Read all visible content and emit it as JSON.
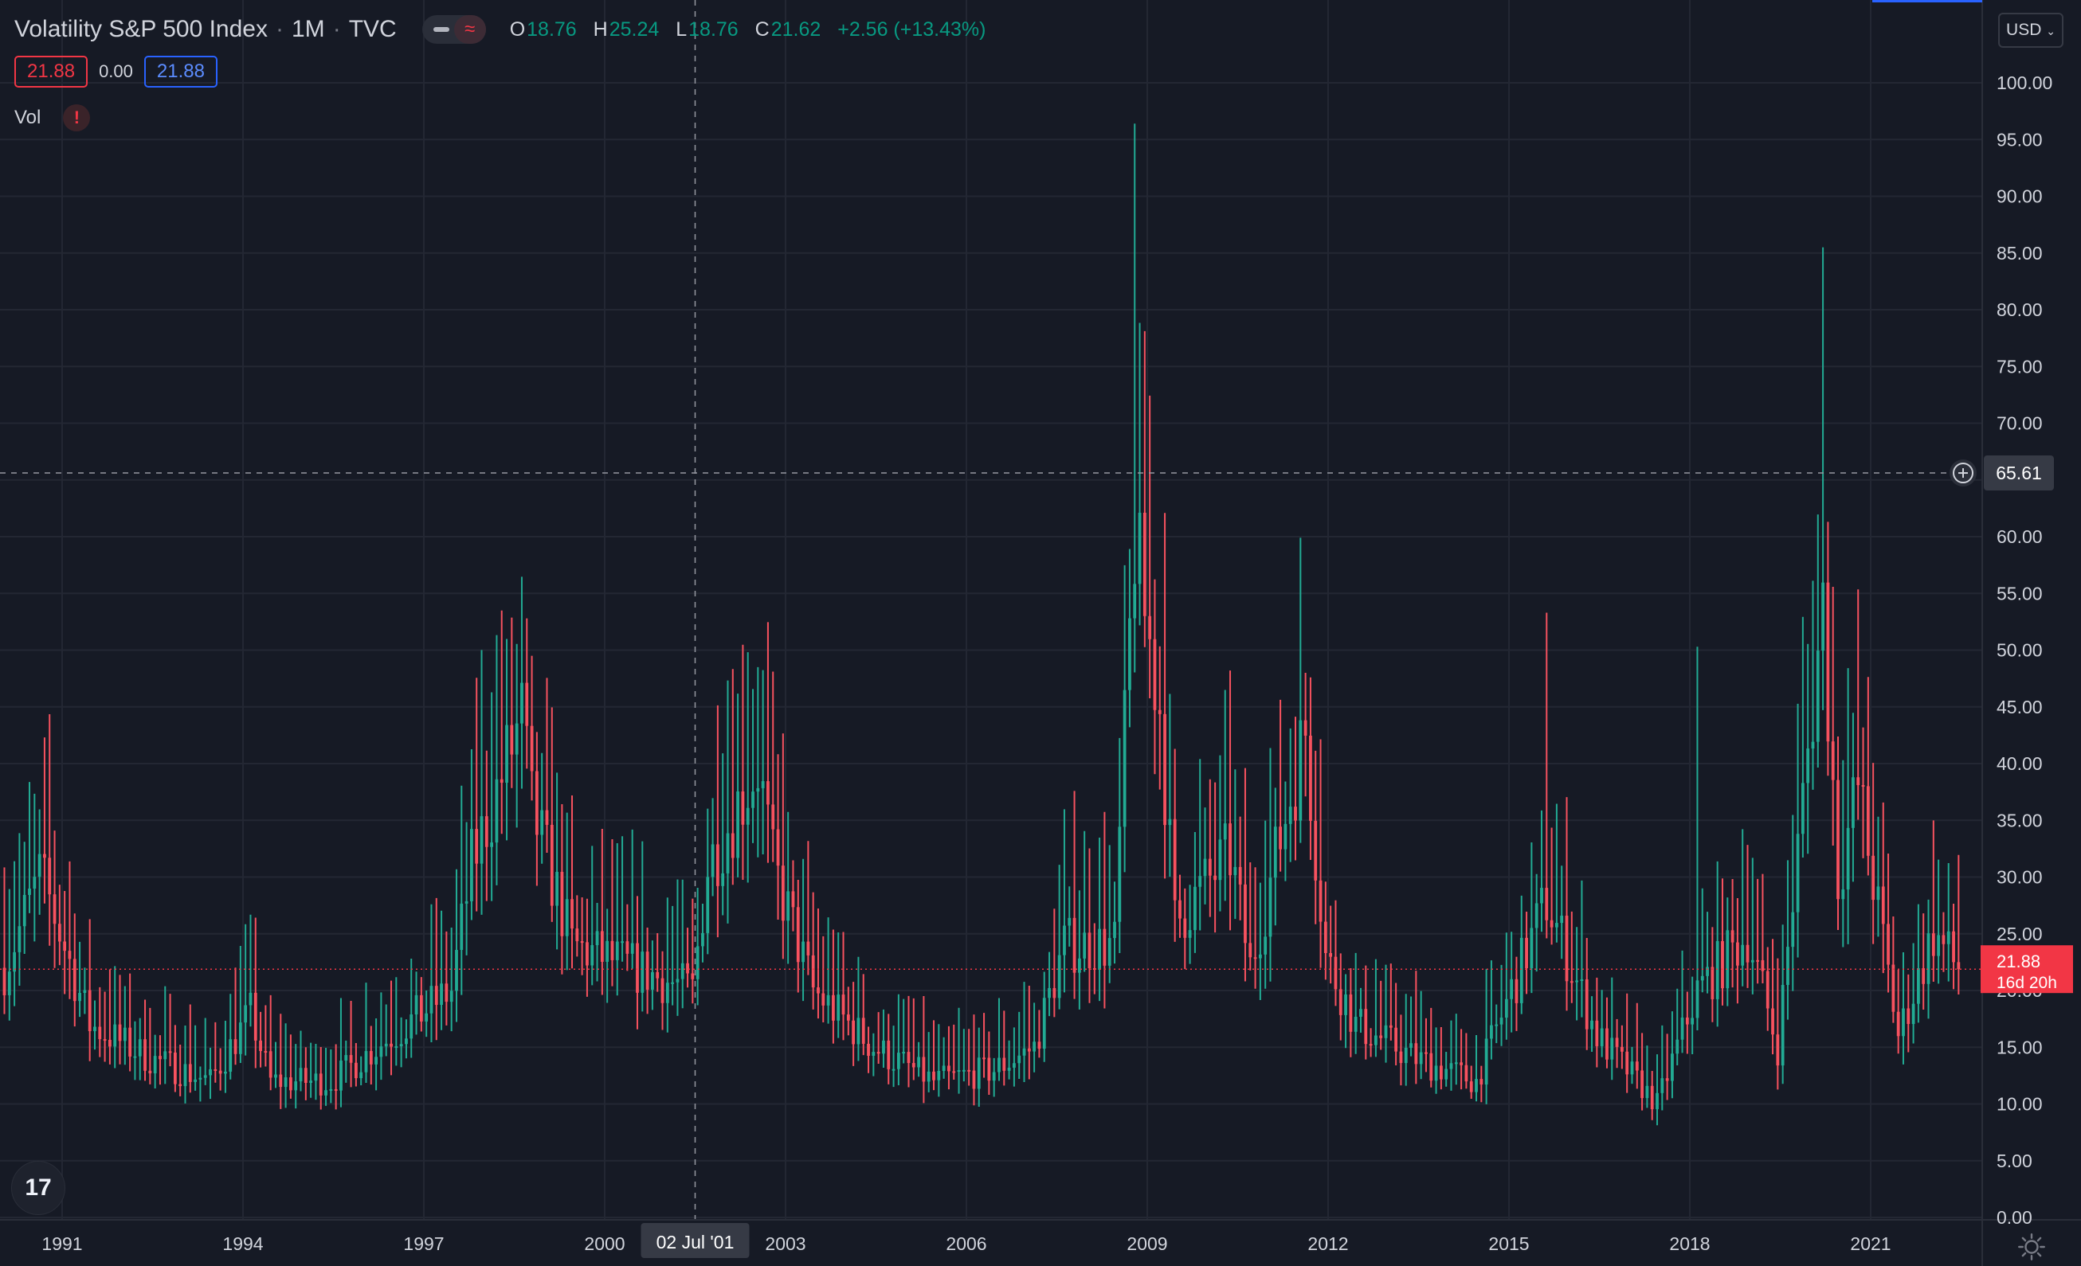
{
  "header": {
    "symbol_name": "Volatility S&P 500 Index",
    "interval": "1M",
    "exchange": "TVC",
    "ohlc": {
      "open_label": "O",
      "open": "18.76",
      "high_label": "H",
      "high": "25.24",
      "low_label": "L",
      "low": "18.76",
      "close_label": "C",
      "close": "21.62",
      "change": "+2.56 (+13.43%)"
    },
    "bid": "21.88",
    "spread": "0.00",
    "ask": "21.88",
    "volume_label": "Vol",
    "volume_warning": "!"
  },
  "price_scale": {
    "currency": "USD",
    "ticks": [
      "100.00",
      "95.00",
      "90.00",
      "85.00",
      "80.00",
      "75.00",
      "70.00",
      "65.00",
      "60.00",
      "55.00",
      "50.00",
      "45.00",
      "40.00",
      "35.00",
      "30.00",
      "25.00",
      "20.00",
      "15.00",
      "10.00",
      "5.00",
      "0.00"
    ],
    "crosshair_price": "65.61",
    "last_price": "21.88",
    "countdown": "16d 20h"
  },
  "time_scale": {
    "labels": [
      "1991",
      "1994",
      "1997",
      "2000",
      "2003",
      "2006",
      "2009",
      "2012",
      "2015",
      "2018",
      "2021"
    ],
    "crosshair_date": "02 Jul '01"
  },
  "colors": {
    "background": "#161a25",
    "grid": "#232733",
    "up": "#22ab94",
    "down": "#f7525f",
    "text": "#d1d4dc",
    "last_price": "#f23645"
  },
  "icons": {
    "logo": "tradingview-logo-icon",
    "settings": "gear-icon",
    "add": "plus-circle-icon"
  },
  "chart_data": {
    "type": "candlestick",
    "title": "Volatility S&P 500 Index",
    "interval": "1M",
    "xlabel": "",
    "ylabel": "",
    "ylim": [
      0,
      100
    ],
    "x_range": [
      "1990-01",
      "2022-06"
    ],
    "grid": true,
    "crosshair": {
      "date": "2001-07-02",
      "price": 65.61
    },
    "last_close": 21.88,
    "monthly_close_approx": [
      {
        "date": "1990-01",
        "close": 22
      },
      {
        "date": "1990-08",
        "close": 30
      },
      {
        "date": "1990-10",
        "close": 28
      },
      {
        "date": "1991-06",
        "close": 17
      },
      {
        "date": "1992-06",
        "close": 14
      },
      {
        "date": "1993-06",
        "close": 12
      },
      {
        "date": "1994-02",
        "close": 18
      },
      {
        "date": "1994-06",
        "close": 12
      },
      {
        "date": "1995-06",
        "close": 12
      },
      {
        "date": "1996-06",
        "close": 16
      },
      {
        "date": "1997-06",
        "close": 20
      },
      {
        "date": "1997-10",
        "close": 31
      },
      {
        "date": "1998-08",
        "close": 44
      },
      {
        "date": "1998-10",
        "close": 36
      },
      {
        "date": "1999-06",
        "close": 24
      },
      {
        "date": "2000-06",
        "close": 22
      },
      {
        "date": "2001-06",
        "close": 20
      },
      {
        "date": "2001-09",
        "close": 31
      },
      {
        "date": "2002-07",
        "close": 40
      },
      {
        "date": "2002-10",
        "close": 31
      },
      {
        "date": "2003-06",
        "close": 20
      },
      {
        "date": "2004-06",
        "close": 15
      },
      {
        "date": "2005-06",
        "close": 12
      },
      {
        "date": "2006-06",
        "close": 13
      },
      {
        "date": "2007-02",
        "close": 15
      },
      {
        "date": "2007-08",
        "close": 24
      },
      {
        "date": "2008-06",
        "close": 24
      },
      {
        "date": "2008-10",
        "close": 60
      },
      {
        "date": "2008-11",
        "close": 56
      },
      {
        "date": "2009-03",
        "close": 45
      },
      {
        "date": "2009-06",
        "close": 26
      },
      {
        "date": "2010-05",
        "close": 32
      },
      {
        "date": "2010-09",
        "close": 22
      },
      {
        "date": "2011-08",
        "close": 43
      },
      {
        "date": "2011-12",
        "close": 23
      },
      {
        "date": "2012-06",
        "close": 17
      },
      {
        "date": "2013-06",
        "close": 14
      },
      {
        "date": "2014-06",
        "close": 12
      },
      {
        "date": "2015-08",
        "close": 28
      },
      {
        "date": "2016-06",
        "close": 16
      },
      {
        "date": "2017-06",
        "close": 10
      },
      {
        "date": "2018-02",
        "close": 20
      },
      {
        "date": "2018-12",
        "close": 25
      },
      {
        "date": "2019-06",
        "close": 15
      },
      {
        "date": "2020-03",
        "close": 54
      },
      {
        "date": "2020-06",
        "close": 30
      },
      {
        "date": "2020-10",
        "close": 38
      },
      {
        "date": "2021-06",
        "close": 16
      },
      {
        "date": "2022-01",
        "close": 25
      },
      {
        "date": "2022-06",
        "close": 21.88
      }
    ],
    "spikes": [
      {
        "date": "2008-10",
        "high": 96.4
      },
      {
        "date": "2020-03",
        "high": 85.5
      },
      {
        "date": "2015-08",
        "high": 53.3
      },
      {
        "date": "2018-02",
        "high": 50.3
      },
      {
        "date": "1998-10",
        "high": 49.5
      },
      {
        "date": "2002-07",
        "high": 48.5
      },
      {
        "date": "2010-05",
        "high": 48.2
      },
      {
        "date": "2011-08",
        "high": 48.0
      }
    ],
    "annotations": []
  }
}
